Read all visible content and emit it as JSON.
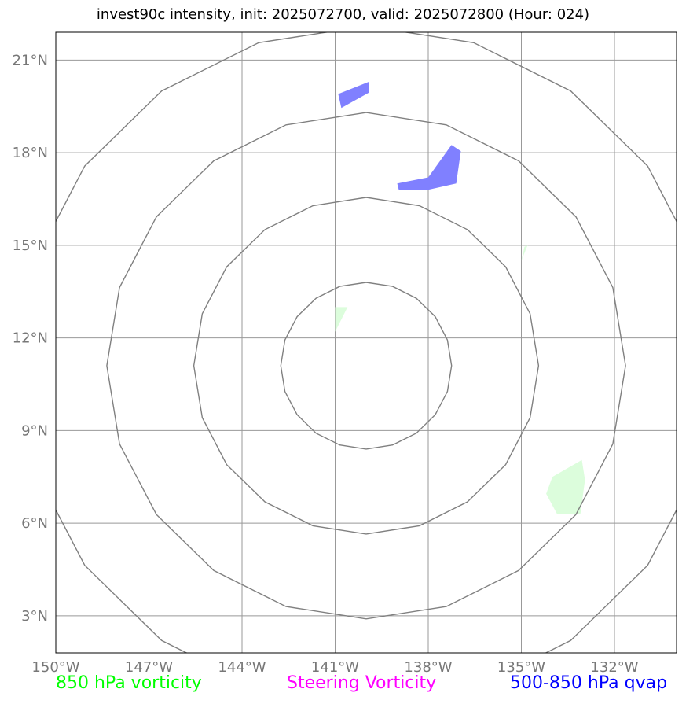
{
  "title": "invest90c intensity, init: 2025072700, valid: 2025072800 (Hour: 024)",
  "colors": {
    "grid": "#999999",
    "ring": "#808080",
    "vorticity_fill": "#dcfddc",
    "qvap_fill": "#8080ff",
    "tick_text": "#777777",
    "legend_850": "#00ff00",
    "legend_steering": "#ff00ff",
    "legend_qvap": "#0000ff"
  },
  "legend": {
    "vorticity_850": "850 hPa vorticity",
    "steering": "Steering Vorticity",
    "qvap": "500-850 hPa qvap"
  },
  "axes": {
    "lon_range": [
      -150,
      -130
    ],
    "lat_range": [
      1.8,
      21.9
    ],
    "lon_ticks": [
      {
        "value": -150,
        "label": "150°W"
      },
      {
        "value": -147,
        "label": "147°W"
      },
      {
        "value": -144,
        "label": "144°W"
      },
      {
        "value": -141,
        "label": "141°W"
      },
      {
        "value": -138,
        "label": "138°W"
      },
      {
        "value": -135,
        "label": "135°W"
      },
      {
        "value": -132,
        "label": "132°W"
      }
    ],
    "lat_ticks": [
      {
        "value": 3,
        "label": "3°N"
      },
      {
        "value": 6,
        "label": "6°N"
      },
      {
        "value": 9,
        "label": "9°N"
      },
      {
        "value": 12,
        "label": "12°N"
      },
      {
        "value": 15,
        "label": "15°N"
      },
      {
        "value": 18,
        "label": "18°N"
      },
      {
        "value": 21,
        "label": "21°N"
      }
    ]
  },
  "chart_data": {
    "type": "map",
    "center": {
      "lon": -140.0,
      "lat": 11.1
    },
    "range_rings_deg": [
      2.7,
      5.45,
      8.2,
      11.0
    ],
    "features": {
      "qvap": [
        [
          [
            -140.9,
            19.9
          ],
          [
            -139.9,
            20.3
          ],
          [
            -139.9,
            19.95
          ],
          [
            -140.8,
            19.45
          ]
        ],
        [
          [
            -139.0,
            17.0
          ],
          [
            -138.0,
            17.2
          ],
          [
            -137.25,
            18.25
          ],
          [
            -136.95,
            18.05
          ],
          [
            -137.1,
            17.0
          ],
          [
            -138.0,
            16.8
          ],
          [
            -138.95,
            16.8
          ]
        ]
      ],
      "vorticity_850": [
        [
          [
            -134.9,
            14.95
          ],
          [
            -134.8,
            15.0
          ],
          [
            -135.0,
            14.5
          ]
        ],
        [
          [
            -141.0,
            13.0
          ],
          [
            -140.6,
            13.0
          ],
          [
            -141.0,
            12.2
          ]
        ],
        [
          [
            -134.0,
            7.5
          ],
          [
            -133.05,
            8.05
          ],
          [
            -132.95,
            7.4
          ],
          [
            -133.1,
            6.3
          ],
          [
            -133.85,
            6.3
          ],
          [
            -134.2,
            6.95
          ]
        ]
      ]
    }
  }
}
